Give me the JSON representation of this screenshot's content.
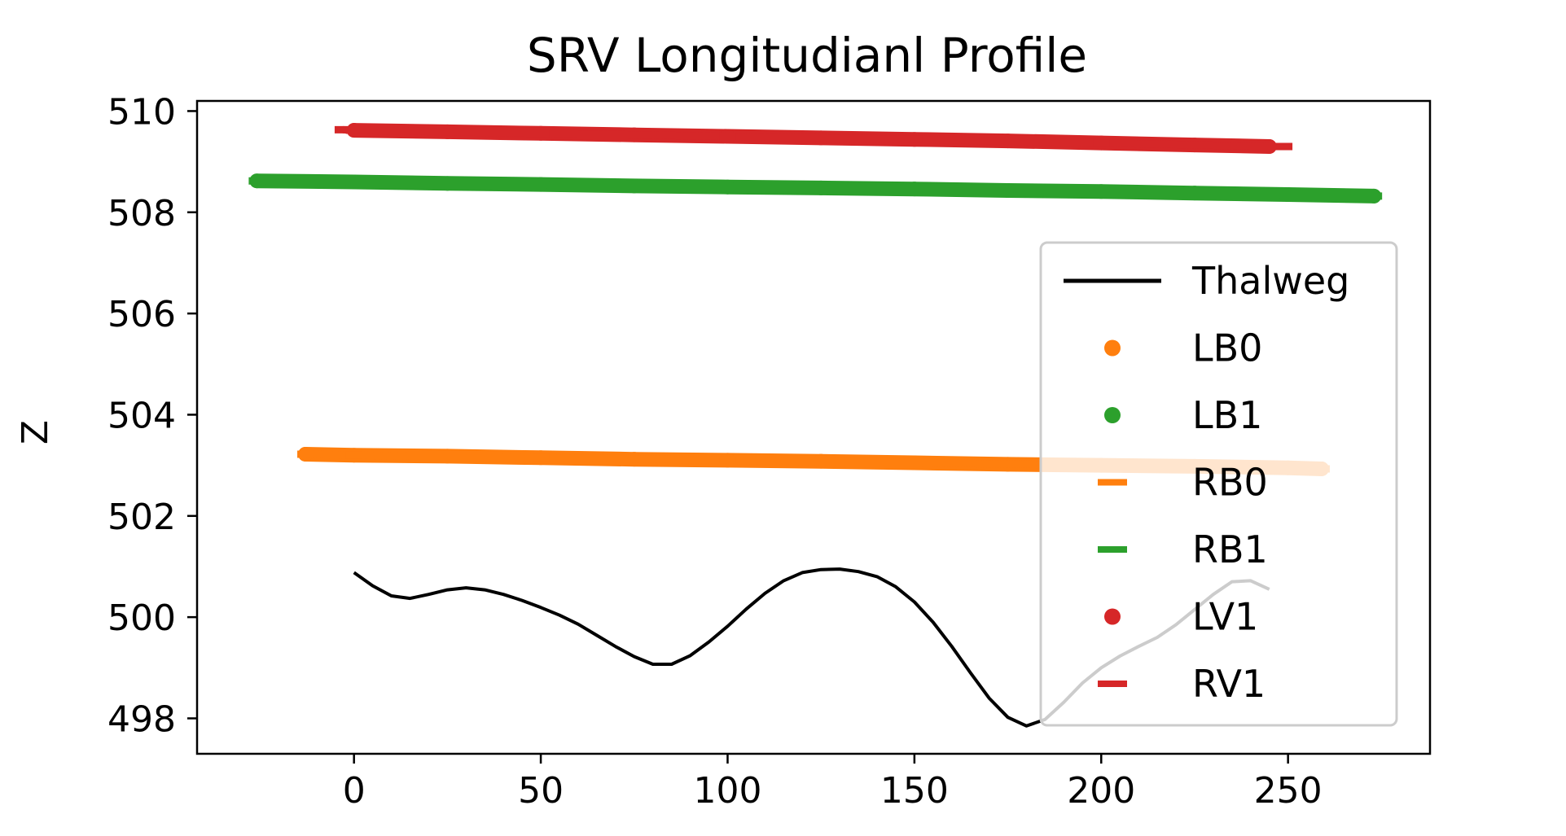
{
  "chart_data": {
    "type": "line",
    "title": "SRV Longitudianl Profile",
    "xlabel": "",
    "ylabel": "Z",
    "xlim": [
      -42,
      288
    ],
    "ylim": [
      497.3,
      510.2
    ],
    "xticks": [
      0,
      50,
      100,
      150,
      200,
      250
    ],
    "yticks": [
      498,
      500,
      502,
      504,
      506,
      508,
      510
    ],
    "grid": false,
    "legend_position": "right",
    "series": [
      {
        "name": "Thalweg",
        "style": "line",
        "color": "#000000",
        "x": [
          0,
          5,
          10,
          15,
          20,
          25,
          30,
          35,
          40,
          45,
          50,
          55,
          60,
          65,
          70,
          75,
          80,
          85,
          90,
          95,
          100,
          105,
          110,
          115,
          120,
          125,
          130,
          135,
          140,
          145,
          150,
          155,
          160,
          165,
          170,
          175,
          180,
          185,
          190,
          195,
          200,
          205,
          210,
          215,
          220,
          225,
          230,
          235,
          240,
          245
        ],
        "y": [
          500.88,
          500.62,
          500.42,
          500.37,
          500.45,
          500.54,
          500.58,
          500.54,
          500.45,
          500.33,
          500.19,
          500.04,
          499.86,
          499.64,
          499.42,
          499.22,
          499.07,
          499.07,
          499.24,
          499.51,
          499.82,
          500.16,
          500.47,
          500.72,
          500.88,
          500.94,
          500.95,
          500.9,
          500.8,
          500.6,
          500.3,
          499.9,
          499.42,
          498.9,
          498.4,
          498.02,
          497.85,
          497.98,
          498.32,
          498.7,
          499.0,
          499.23,
          499.42,
          499.6,
          499.85,
          500.15,
          500.45,
          500.7,
          500.72,
          500.55
        ]
      },
      {
        "name": "LB0",
        "style": "marker-dot",
        "color": "#ff7f0e",
        "x": [
          -13,
          0,
          25,
          50,
          75,
          100,
          125,
          150,
          175,
          200,
          225,
          250,
          259
        ],
        "y": [
          503.22,
          503.2,
          503.18,
          503.15,
          503.12,
          503.1,
          503.08,
          503.05,
          503.02,
          503.0,
          502.98,
          502.95,
          502.93
        ]
      },
      {
        "name": "LB1",
        "style": "marker-dot",
        "color": "#2ca02c",
        "x": [
          -26,
          0,
          25,
          50,
          75,
          100,
          125,
          150,
          175,
          200,
          225,
          250,
          273
        ],
        "y": [
          508.62,
          508.6,
          508.57,
          508.55,
          508.52,
          508.5,
          508.48,
          508.46,
          508.43,
          508.41,
          508.38,
          508.35,
          508.32
        ]
      },
      {
        "name": "RB0",
        "style": "marker-dash",
        "color": "#ff7f0e",
        "x": [
          -13,
          0,
          50,
          100,
          150,
          200,
          250,
          259
        ],
        "y": [
          503.22,
          503.2,
          503.15,
          503.1,
          503.05,
          503.0,
          502.95,
          502.93
        ]
      },
      {
        "name": "RB1",
        "style": "marker-dash",
        "color": "#2ca02c",
        "x": [
          -26,
          0,
          50,
          100,
          150,
          200,
          250,
          273
        ],
        "y": [
          508.62,
          508.6,
          508.55,
          508.5,
          508.46,
          508.41,
          508.35,
          508.32
        ]
      },
      {
        "name": "LV1",
        "style": "marker-dot",
        "color": "#d62728",
        "x": [
          0,
          25,
          50,
          75,
          100,
          125,
          150,
          175,
          200,
          225,
          245
        ],
        "y": [
          509.62,
          509.59,
          509.56,
          509.53,
          509.5,
          509.47,
          509.44,
          509.41,
          509.37,
          509.33,
          509.3
        ]
      },
      {
        "name": "RV1",
        "style": "marker-dash",
        "color": "#d62728",
        "x": [
          -3,
          0,
          50,
          100,
          150,
          200,
          245,
          249
        ],
        "y": [
          509.63,
          509.62,
          509.56,
          509.5,
          509.44,
          509.37,
          509.3,
          509.3
        ]
      }
    ]
  }
}
